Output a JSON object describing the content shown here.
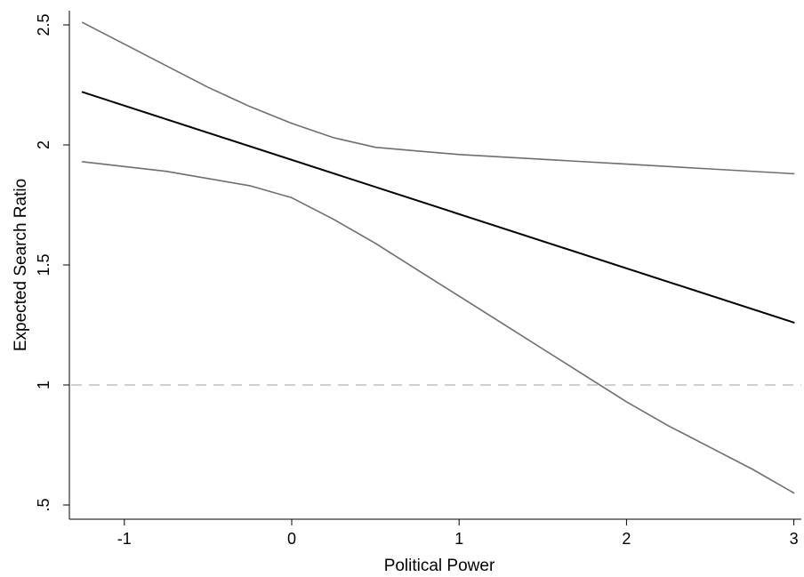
{
  "chart_data": {
    "type": "line",
    "title": "",
    "xlabel": "Political Power",
    "ylabel": "Expected Search Ratio",
    "xlim": [
      -1.3,
      3.05
    ],
    "ylim": [
      0.45,
      2.58
    ],
    "x_ticks": [
      -1,
      0,
      1,
      2,
      3
    ],
    "x_tick_labels": [
      "-1",
      "0",
      "1",
      "2",
      "3"
    ],
    "y_ticks": [
      0.5,
      1,
      1.5,
      2,
      2.5
    ],
    "y_tick_labels": [
      ".5",
      "1",
      "1.5",
      "2",
      "2.5"
    ],
    "grid": false,
    "legend": "none",
    "reference_line": {
      "y": 1,
      "style": "dashed",
      "color": "#b4b4b4"
    },
    "series": [
      {
        "role": "estimate",
        "color": "#000000",
        "x": [
          -1.25,
          3
        ],
        "y": [
          2.22,
          1.26
        ]
      },
      {
        "role": "upper-bound",
        "color": "#6e6e6e",
        "x": [
          -1.25,
          -1,
          -0.75,
          -0.5,
          -0.25,
          0,
          0.25,
          0.5,
          0.75,
          1,
          1.5,
          2,
          2.5,
          3
        ],
        "y": [
          2.51,
          2.42,
          2.33,
          2.24,
          2.16,
          2.09,
          2.03,
          1.99,
          1.975,
          1.96,
          1.94,
          1.92,
          1.9,
          1.88
        ]
      },
      {
        "role": "lower-bound",
        "color": "#6e6e6e",
        "x": [
          -1.25,
          -1,
          -0.75,
          -0.5,
          -0.25,
          0,
          0.25,
          0.5,
          0.75,
          1,
          1.25,
          1.5,
          1.75,
          2,
          2.25,
          2.5,
          2.75,
          3
        ],
        "y": [
          1.93,
          1.91,
          1.89,
          1.86,
          1.83,
          1.78,
          1.69,
          1.59,
          1.48,
          1.37,
          1.26,
          1.15,
          1.04,
          0.93,
          0.83,
          0.74,
          0.65,
          0.55
        ]
      }
    ]
  }
}
